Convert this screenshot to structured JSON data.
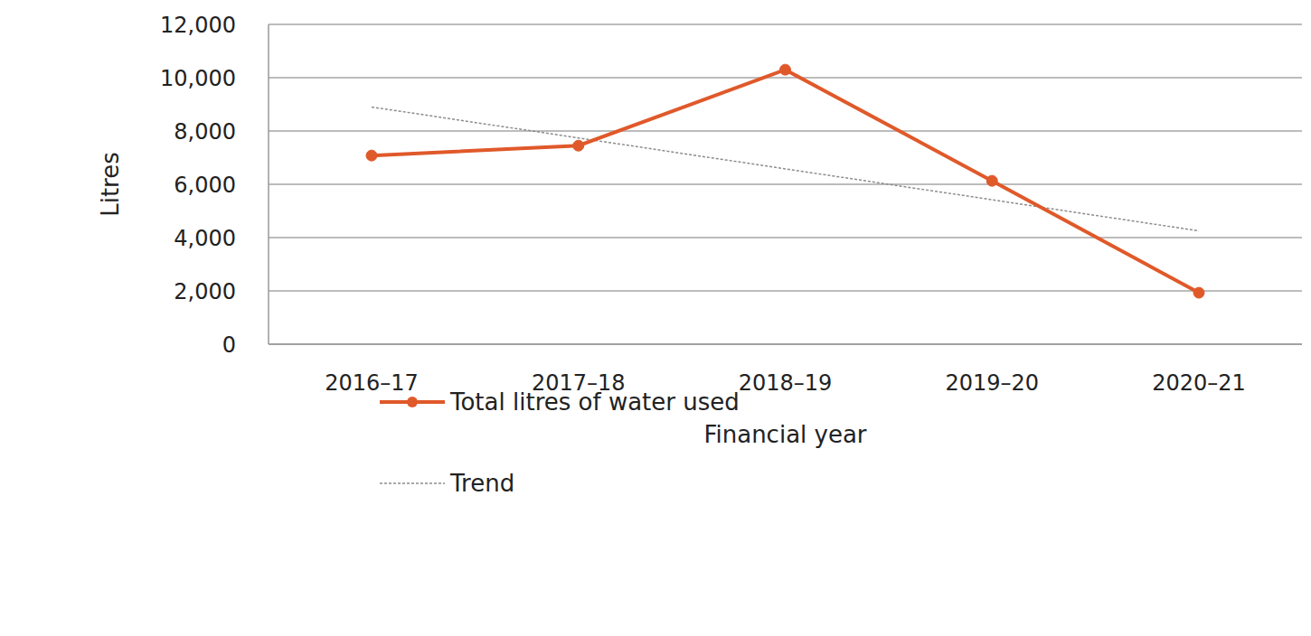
{
  "chart_data": {
    "type": "line",
    "x_label": "Financial year",
    "y_label": "Litres",
    "categories": [
      "2016–17",
      "2017–18",
      "2018–19",
      "2019–20",
      "2020–21"
    ],
    "series": [
      {
        "name": "Total litres of water used",
        "color": "#e0592a",
        "marker": "circle",
        "line_style": "solid",
        "values": [
          7080,
          7450,
          10300,
          6130,
          1930
        ]
      },
      {
        "name": "Trend",
        "color": "#8c8c8c",
        "marker": "none",
        "line_style": "dashed",
        "values": [
          8900,
          7740,
          6580,
          5420,
          4250
        ]
      }
    ],
    "ylim": [
      0,
      12000
    ],
    "yticks": [
      0,
      {
        "value": 2000,
        "label": "2,000"
      },
      {
        "value": 4000,
        "label": "4,000"
      },
      {
        "value": 6000,
        "label": "6,000"
      },
      {
        "value": 8000,
        "label": "8,000"
      },
      {
        "value": 10000,
        "label": "10,000"
      },
      {
        "value": 12000,
        "label": "12,000"
      }
    ],
    "grid": true,
    "legend": "lower left"
  }
}
